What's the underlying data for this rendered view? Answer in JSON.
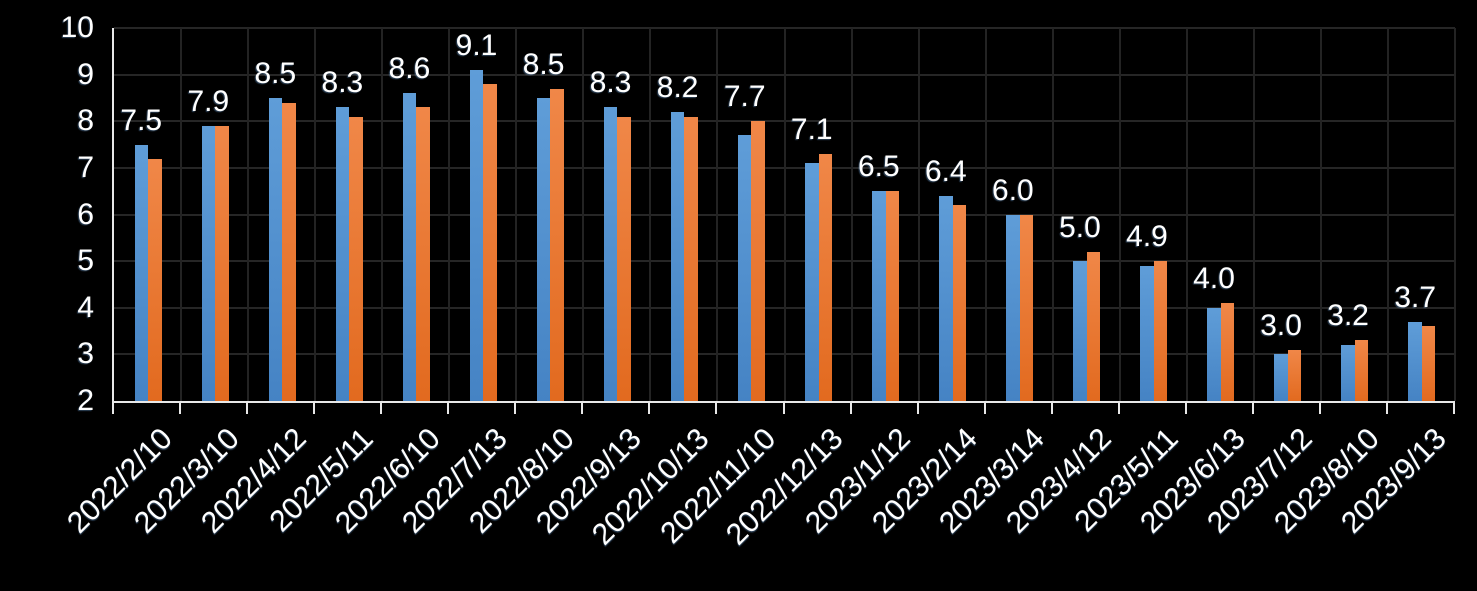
{
  "chart_data": {
    "type": "bar",
    "title": "",
    "xlabel": "",
    "ylabel": "",
    "categories": [
      "2022/2/10",
      "2022/3/10",
      "2022/4/12",
      "2022/5/11",
      "2022/6/10",
      "2022/7/13",
      "2022/8/10",
      "2022/9/13",
      "2022/10/13",
      "2022/11/10",
      "2022/12/13",
      "2023/1/12",
      "2023/2/14",
      "2023/3/14",
      "2023/4/12",
      "2023/5/11",
      "2023/6/13",
      "2023/7/12",
      "2023/8/10",
      "2023/9/13"
    ],
    "series": [
      {
        "name": "blue-series",
        "color": "#5B9BD5",
        "values": [
          7.5,
          7.9,
          8.5,
          8.3,
          8.6,
          9.1,
          8.5,
          8.3,
          8.2,
          7.7,
          7.1,
          6.5,
          6.4,
          6.0,
          5.0,
          4.9,
          4.0,
          3.0,
          3.2,
          3.7
        ],
        "data_labels": [
          "7.5",
          "7.9",
          "8.5",
          "8.3",
          "8.6",
          "9.1",
          "8.5",
          "8.3",
          "8.2",
          "7.7",
          "7.1",
          "6.5",
          "6.4",
          "6.0",
          "5.0",
          "4.9",
          "4.0",
          "3.0",
          "3.2",
          "3.7"
        ]
      },
      {
        "name": "orange-series",
        "color": "#ED7D31",
        "values": [
          7.2,
          7.9,
          8.4,
          8.1,
          8.3,
          8.8,
          8.7,
          8.1,
          8.1,
          8.0,
          7.3,
          6.5,
          6.2,
          6.0,
          5.2,
          5.0,
          4.1,
          3.1,
          3.3,
          3.6
        ]
      }
    ],
    "y_axis": {
      "min": 2,
      "max": 10,
      "tick_interval": 1,
      "tick_labels": [
        "10",
        "9",
        "8",
        "7",
        "6",
        "5",
        "4",
        "3",
        "2"
      ]
    },
    "grid": true,
    "legend_position": "none",
    "colors": {
      "background": "#000000",
      "grid": "#262626",
      "axis": "#E8E8E8",
      "text": "#FFFFFF"
    }
  }
}
